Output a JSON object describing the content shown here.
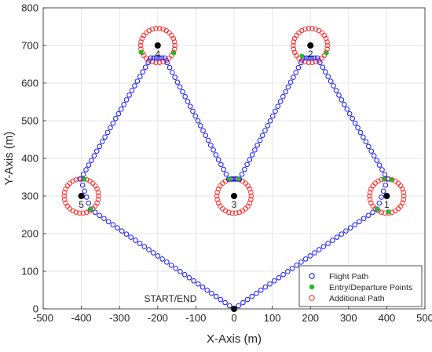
{
  "chart_data": {
    "type": "scatter",
    "xlabel": "X-Axis (m)",
    "ylabel": "Y-Axis (m)",
    "xlim": [
      -500,
      500
    ],
    "ylim": [
      0,
      800
    ],
    "xticks": [
      "-500",
      "-400",
      "-300",
      "-200",
      "-100",
      "0",
      "100",
      "200",
      "300",
      "400",
      "500"
    ],
    "yticks": [
      "0",
      "100",
      "200",
      "300",
      "400",
      "500",
      "600",
      "700",
      "800"
    ],
    "grid": true,
    "legend_position": "bottom-right",
    "start_end": {
      "label": "START/END",
      "x": 0,
      "y": 0
    },
    "waypoints": [
      {
        "label": "1",
        "x": 400,
        "y": 300
      },
      {
        "label": "2",
        "x": 200,
        "y": 700
      },
      {
        "label": "3",
        "x": 0,
        "y": 300
      },
      {
        "label": "4",
        "x": -200,
        "y": 700
      },
      {
        "label": "5",
        "x": -400,
        "y": 300
      }
    ],
    "circle_radius": 45,
    "series": [
      {
        "name": "Flight Path",
        "color": "#0000ff",
        "segments": [
          [
            [
              0,
              0
            ],
            [
              375,
              265
            ]
          ],
          [
            [
              402,
              345
            ],
            [
              218,
              667
            ]
          ],
          [
            [
              182,
              667
            ],
            [
              14,
              345
            ]
          ],
          [
            [
              -14,
              345
            ],
            [
              -182,
              667
            ]
          ],
          [
            [
              -218,
              667
            ],
            [
              -402,
              345
            ]
          ],
          [
            [
              -376,
              265
            ],
            [
              0,
              0
            ]
          ]
        ],
        "arcs": [
          {
            "cx": 400,
            "cy": 300,
            "from": [
              375,
              265
            ],
            "to": [
              402,
              345
            ]
          },
          {
            "cx": 200,
            "cy": 700,
            "from": [
              218,
              667
            ],
            "to": [
              182,
              667
            ]
          },
          {
            "cx": 0,
            "cy": 300,
            "from": [
              14,
              345
            ],
            "to": [
              -14,
              345
            ]
          },
          {
            "cx": -200,
            "cy": 700,
            "from": [
              -182,
              667
            ],
            "to": [
              -218,
              667
            ]
          },
          {
            "cx": -400,
            "cy": 300,
            "from": [
              -402,
              345
            ],
            "to": [
              -376,
              265
            ]
          }
        ]
      },
      {
        "name": "Entry/Departure Points",
        "color": "#22bb22",
        "points": [
          [
            375,
            265
          ],
          [
            404,
            258
          ],
          [
            392,
            345
          ],
          [
            412,
            343
          ],
          [
            178,
            672
          ],
          [
            242,
            680
          ],
          [
            -12,
            345
          ],
          [
            12,
            345
          ],
          [
            -244,
            682
          ],
          [
            -158,
            680
          ],
          [
            -392,
            345
          ],
          [
            -376,
            265
          ]
        ]
      },
      {
        "name": "Additional Path",
        "color": "#ff2222"
      }
    ]
  }
}
